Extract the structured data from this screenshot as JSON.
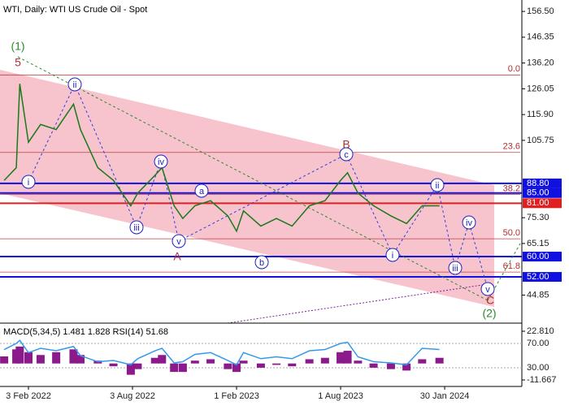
{
  "chart_data": [
    {
      "type": "line",
      "title": "WTI, Daily:  WTI US Crude Oil - Spot",
      "x": [
        -1.4,
        -0.7,
        -0.5,
        0,
        0.7,
        1.6,
        2.6,
        3.0,
        4.0,
        4.9,
        5.9,
        6.3,
        7.3,
        7.7,
        8.4,
        8.9,
        9.6,
        10.5,
        11.5,
        12.0,
        12.4,
        13.4,
        14.3,
        15.2,
        16.2,
        17.1,
        18.0,
        18.4,
        19.0,
        19.9,
        20.9,
        21.8,
        22.7,
        23.7
      ],
      "series": [
        {
          "color": "#1a7a1a",
          "values": [
            90,
            95,
            128,
            105,
            112,
            110,
            120,
            110,
            95,
            90,
            80,
            85,
            92,
            95,
            80,
            75,
            80,
            82,
            76,
            70,
            78,
            72,
            75,
            72,
            80,
            82,
            90,
            93,
            85,
            80,
            76,
            73,
            80,
            80
          ]
        }
      ],
      "xlim": [
        -1.64,
        28.45
      ],
      "xticks": [
        {
          "value": 0,
          "label": "3 Feb 2022"
        },
        {
          "value": 6,
          "label": "3 Aug 2022"
        },
        {
          "value": 12,
          "label": "1 Feb 2023"
        },
        {
          "value": 18,
          "label": "1 Aug 2023"
        },
        {
          "value": 24,
          "label": "30 Jan 2024"
        }
      ],
      "ylim": [
        33.8,
        161.0
      ],
      "yticks": [
        {
          "value": 156.5,
          "label": "156.50"
        },
        {
          "value": 146.35,
          "label": "146.35"
        },
        {
          "value": 136.2,
          "label": "136.20"
        },
        {
          "value": 126.05,
          "label": "126.05"
        },
        {
          "value": 115.9,
          "label": "115.90"
        },
        {
          "value": 105.75,
          "label": "105.75"
        },
        {
          "value": 75.3,
          "label": "75.30"
        },
        {
          "value": 65.15,
          "label": "65.15"
        },
        {
          "value": 44.85,
          "label": "44.85"
        }
      ],
      "levels": [
        {
          "value": 88.8,
          "label": "88.80",
          "color": "#1010e0"
        },
        {
          "value": 85,
          "label": "85.00",
          "color": "#1010e0"
        },
        {
          "value": 81,
          "label": "81.00",
          "color": "#e02020"
        },
        {
          "value": 60,
          "label": "60.00",
          "color": "#1010e0"
        },
        {
          "value": 52,
          "label": "52.00",
          "color": "#1010e0"
        }
      ],
      "fib_levels": [
        {
          "ratio": {
            "value": 0,
            "label": "0.0"
          },
          "price": 131.5
        },
        {
          "ratio": 23.6,
          "price": 101.0
        },
        {
          "ratio": 38.2,
          "price": 84.5
        },
        {
          "ratio": {
            "value": 50,
            "label": "50.0"
          },
          "price": 67.0
        },
        {
          "ratio": 61.8,
          "price": 53.9
        }
      ],
      "annotations": [
        "(1)",
        "5",
        "i",
        "ii",
        "iii",
        "iv",
        "v",
        "A",
        "a",
        "b",
        "B",
        "c",
        "ii",
        "i",
        "iii",
        "iv",
        "v",
        "C",
        "(2)"
      ]
    },
    {
      "type": "indicator",
      "title": "MACD(5,34,5) 1.481 1.828 RSI(14) 51.68",
      "x": [
        -1.4,
        -0.7,
        -0.5,
        0,
        0.7,
        1.6,
        2.6,
        3.0,
        4.0,
        4.9,
        5.9,
        6.3,
        7.3,
        7.7,
        8.4,
        8.9,
        9.6,
        10.5,
        11.5,
        12.0,
        12.4,
        13.4,
        14.3,
        15.2,
        16.2,
        17.1,
        18.0,
        18.4,
        19.0,
        19.9,
        20.9,
        21.8,
        22.7,
        23.7
      ],
      "series": [
        {
          "color": "#8b1a8b",
          "values": [
            5,
            10,
            12,
            8,
            6,
            8,
            10,
            6,
            2,
            -2,
            -8,
            -4,
            4,
            6,
            -6,
            -6,
            2,
            3,
            -4,
            -6,
            2,
            -3,
            -1,
            -2,
            3,
            4,
            8,
            9,
            2,
            -3,
            -4,
            -5,
            3,
            4
          ]
        },
        {
          "color": "#3399ee",
          "axis": "y2",
          "values": [
            60,
            70,
            75,
            55,
            62,
            58,
            65,
            50,
            40,
            42,
            35,
            45,
            58,
            62,
            38,
            40,
            52,
            55,
            42,
            35,
            55,
            45,
            48,
            45,
            58,
            60,
            70,
            72,
            48,
            40,
            38,
            35,
            62,
            60
          ]
        }
      ],
      "ylim": [
        -13.97,
        27.41
      ],
      "yticks": [
        {
          "value": 22.81,
          "label": "22.810"
        },
        {
          "value": -11.667,
          "label": "-11.667"
        }
      ],
      "y2lim": [
        4.7,
        100.7
      ],
      "y2ticks": [
        {
          "value": 70,
          "label": "70.00"
        },
        {
          "value": 30,
          "label": "30.00"
        }
      ]
    }
  ]
}
